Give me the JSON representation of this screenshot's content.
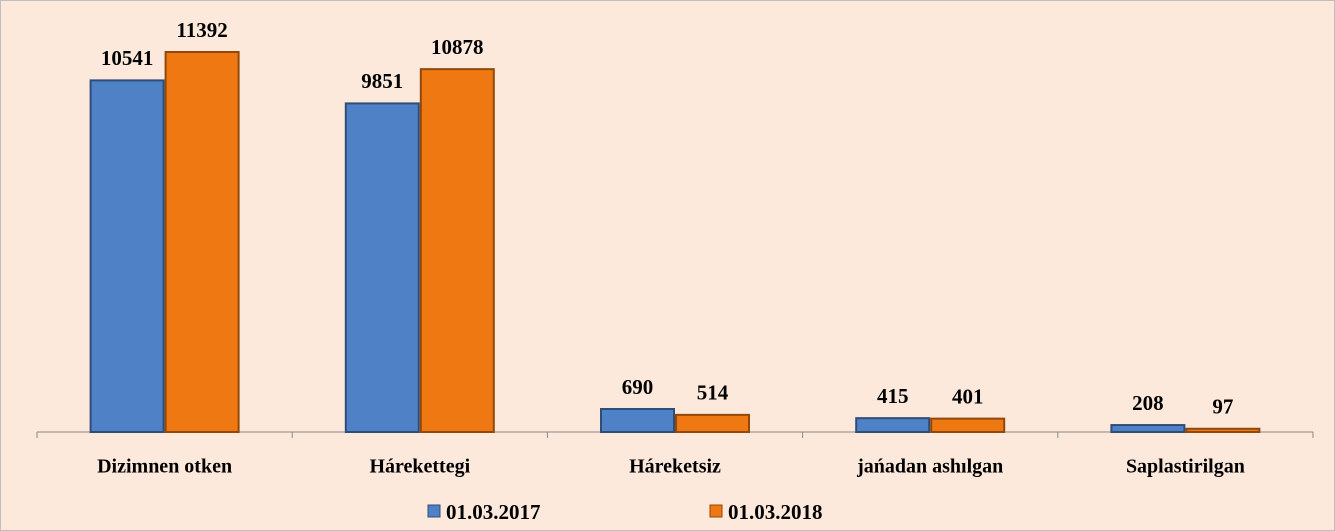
{
  "chart_data": {
    "type": "bar",
    "categories": [
      "Dizimnen otken",
      "Hárekettegi",
      "Háreketsiz",
      "jańadan ashılgan",
      "Saplastirilgan"
    ],
    "series": [
      {
        "name": "01.03.2017",
        "color": "#4f81c7",
        "values": [
          10541,
          9851,
          690,
          415,
          208
        ]
      },
      {
        "name": "01.03.2018",
        "color": "#f07812",
        "values": [
          11392,
          10878,
          514,
          401,
          97
        ]
      }
    ],
    "legend": "bottom"
  }
}
